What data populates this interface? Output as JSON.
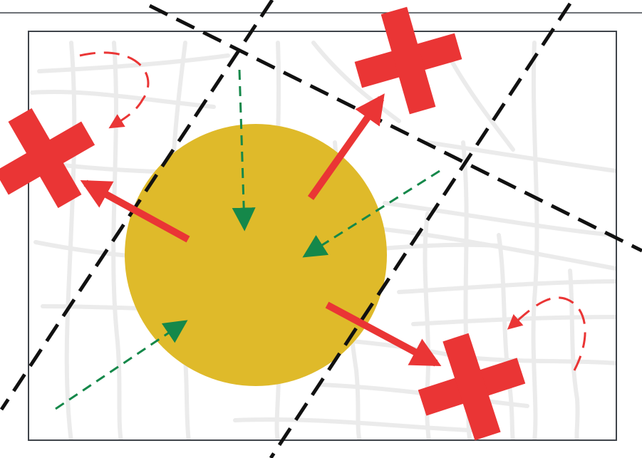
{
  "colors": {
    "background": "#ffffff",
    "street": "#ebebeb",
    "frame": "#3f444a",
    "top_rule": "#3f444a",
    "circle": "#dfba2a",
    "cross": "#ea3535",
    "inward_arrow": "#15884a",
    "boundary_line": "#111111"
  },
  "icons": {
    "cross": "red-cross-icon",
    "circle": "central-circle-icon"
  }
}
